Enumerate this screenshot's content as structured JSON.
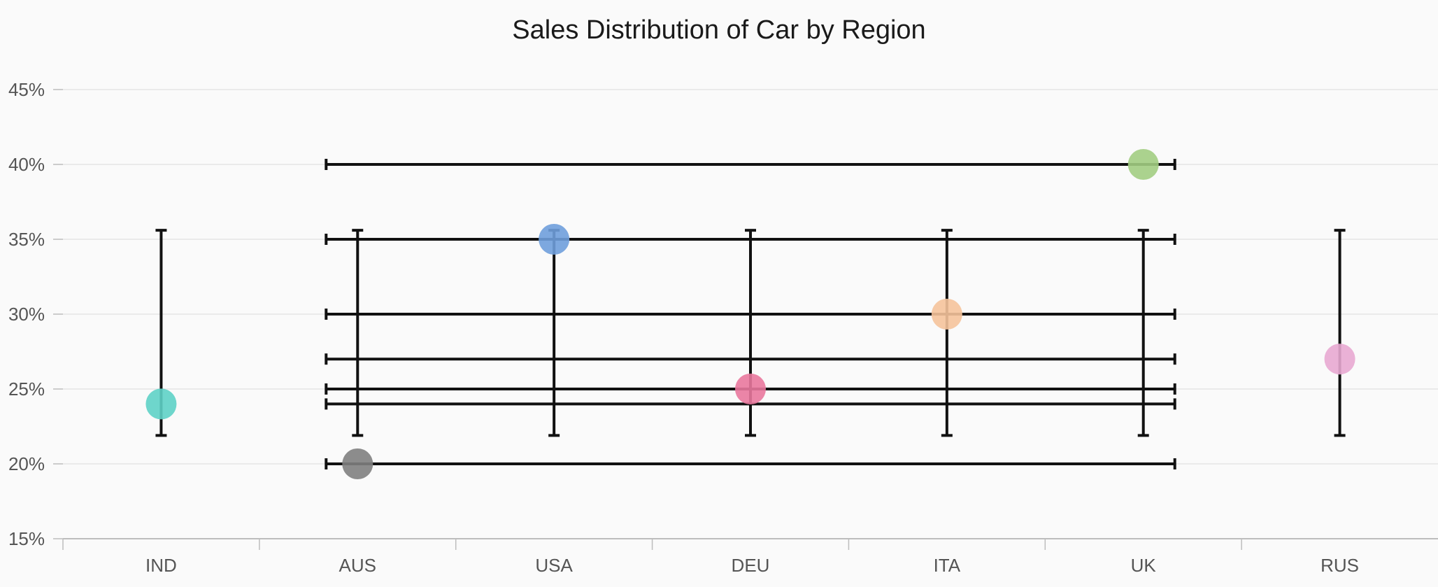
{
  "chart_data": {
    "type": "scatter",
    "title": "Sales Distribution of Car by Region",
    "xlabel": "",
    "ylabel": "",
    "categories": [
      "IND",
      "AUS",
      "USA",
      "DEU",
      "ITA",
      "UK",
      "RUS"
    ],
    "values": [
      24,
      20,
      35,
      25,
      30,
      40,
      27
    ],
    "yticks": [
      "15%",
      "20%",
      "25%",
      "30%",
      "35%",
      "40%",
      "45%"
    ],
    "ylim": [
      15,
      45
    ],
    "grid": true,
    "legend": "none",
    "point_colors": [
      "#5ed1c7",
      "#808080",
      "#6f9fdc",
      "#e9789d",
      "#f5c39b",
      "#a2cd82",
      "#e8a9d1"
    ],
    "error_bars": {
      "vertical": [
        {
          "category": "IND",
          "low": 21.9,
          "high": 35.6
        },
        {
          "category": "AUS",
          "low": 21.9,
          "high": 35.6
        },
        {
          "category": "USA",
          "low": 21.9,
          "high": 35.6
        },
        {
          "category": "DEU",
          "low": 21.9,
          "high": 35.6
        },
        {
          "category": "ITA",
          "low": 21.9,
          "high": 35.6
        },
        {
          "category": "UK",
          "low": 21.9,
          "high": 35.6
        },
        {
          "category": "RUS",
          "low": 21.9,
          "high": 35.6
        }
      ],
      "horizontal": [
        {
          "y": 40,
          "from": "AUS",
          "to": "UK"
        },
        {
          "y": 35,
          "from": "AUS",
          "to": "UK"
        },
        {
          "y": 30,
          "from": "AUS",
          "to": "UK"
        },
        {
          "y": 27,
          "from": "AUS",
          "to": "UK"
        },
        {
          "y": 25,
          "from": "AUS",
          "to": "UK"
        },
        {
          "y": 24,
          "from": "AUS",
          "to": "UK"
        },
        {
          "y": 20,
          "from": "AUS",
          "to": "UK"
        }
      ]
    }
  }
}
